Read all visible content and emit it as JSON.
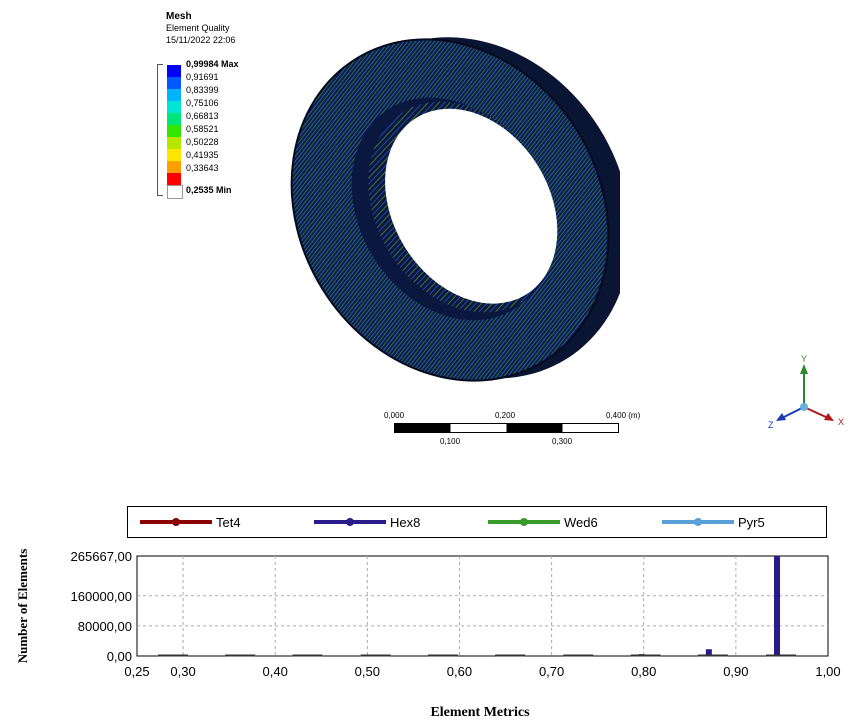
{
  "header": {
    "title": "Mesh",
    "subtitle": "Element Quality",
    "timestamp": "15/11/2022 22:06"
  },
  "legend": {
    "max_label": "0,99984 Max",
    "min_label": "0,2535 Min",
    "values": [
      "0,91691",
      "0,83399",
      "0,75106",
      "0,66813",
      "0,58521",
      "0,50228",
      "0,41935",
      "0,33643"
    ],
    "colors": [
      "#0000ff",
      "#0058ff",
      "#00b4ff",
      "#00e6d2",
      "#00e678",
      "#32e600",
      "#b4e600",
      "#ffe600",
      "#ffa000",
      "#ff0000",
      "#ffffff"
    ]
  },
  "scale_bar": {
    "top_labels": [
      "0,000",
      "0,200",
      "0,400 (m)"
    ],
    "bottom_labels": [
      "0,100",
      "0,300"
    ]
  },
  "triad": {
    "y": "Y",
    "z": "Z",
    "x": "X"
  },
  "chart_data": {
    "type": "bar",
    "series": [
      {
        "name": "Tet4",
        "color": "#8b0000",
        "values": [
          0,
          0,
          0,
          0,
          0,
          0,
          0,
          0,
          0,
          0
        ]
      },
      {
        "name": "Hex8",
        "color": "#2a1b8a",
        "values": [
          2000,
          1500,
          1200,
          1200,
          1500,
          1500,
          3000,
          5000,
          18000,
          265667
        ]
      },
      {
        "name": "Wed6",
        "color": "#3a9a2a",
        "values": [
          0,
          0,
          0,
          0,
          500,
          1000,
          2000,
          3000,
          2000,
          1000
        ]
      },
      {
        "name": "Pyr5",
        "color": "#5aa0d8",
        "values": [
          0,
          0,
          0,
          0,
          0,
          0,
          0,
          0,
          0,
          0
        ]
      }
    ],
    "bin_centers": [
      0.289,
      0.362,
      0.435,
      0.509,
      0.582,
      0.655,
      0.729,
      0.802,
      0.875,
      0.949
    ],
    "xlabel": "Element Metrics",
    "ylabel": "Number of Elements",
    "xticks": [
      "0,25",
      "0,30",
      "0,40",
      "0,50",
      "0,60",
      "0,70",
      "0,80",
      "0,90",
      "1,00"
    ],
    "xtick_values": [
      0.25,
      0.3,
      0.4,
      0.5,
      0.6,
      0.7,
      0.8,
      0.9,
      1.0
    ],
    "yticks": [
      "0,00",
      "80000,00",
      "160000,00",
      "265667,00"
    ],
    "ytick_values": [
      0,
      80000,
      160000,
      265667
    ],
    "xlim": [
      0.25,
      1.0
    ],
    "ylim": [
      0,
      265667
    ]
  }
}
